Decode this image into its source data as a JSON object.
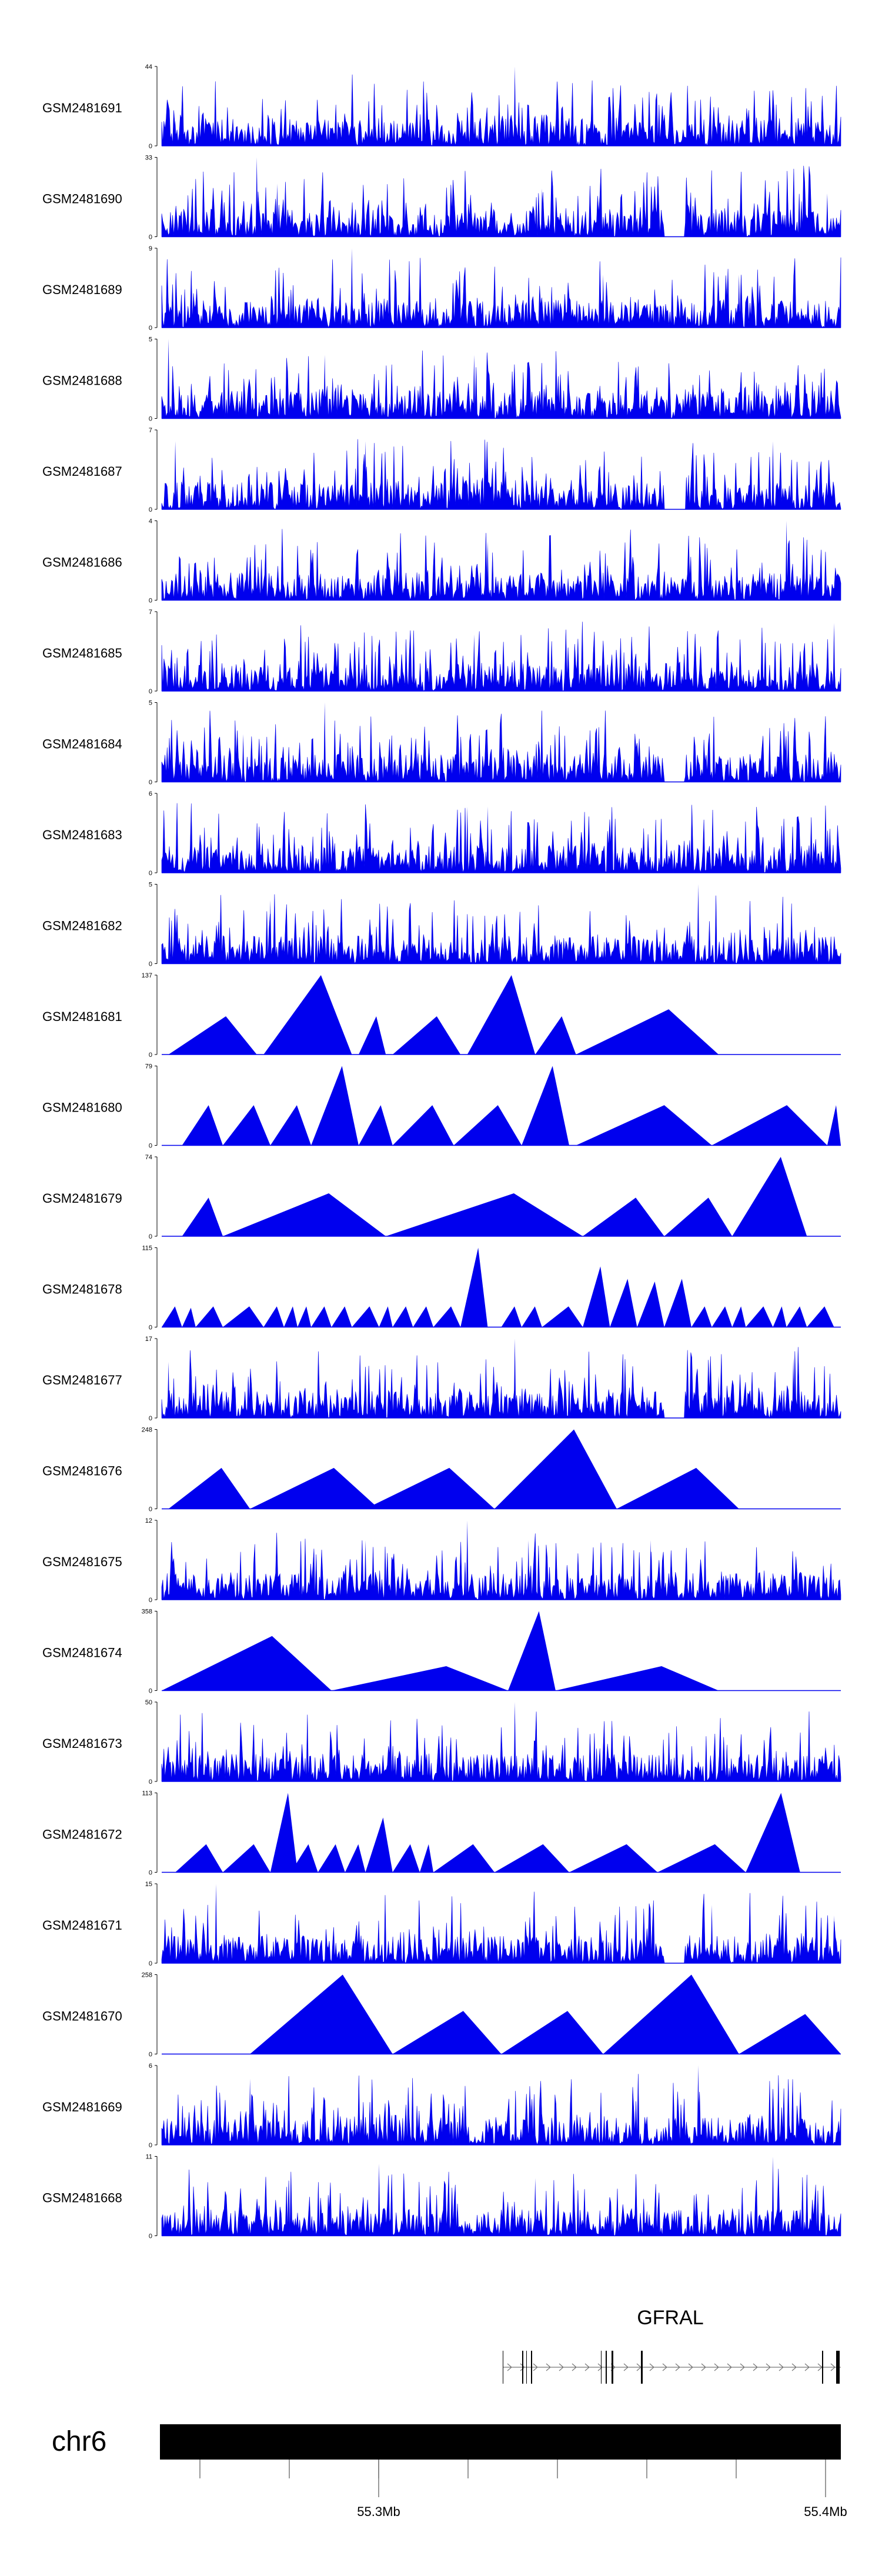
{
  "chart_data": {
    "type": "area",
    "title": "",
    "chromosome": "chr6",
    "x_axis": {
      "ticks": [
        {
          "label": "55.3Mb"
        },
        {
          "label": "55.4Mb"
        }
      ]
    },
    "colors": {
      "signal": "#0000ee",
      "axis": "#000000",
      "ideogram": "#000000"
    },
    "gene": {
      "name": "GFRAL",
      "strand": "+"
    },
    "tracks": [
      {
        "name": "GSM2481691",
        "ymax": "44",
        "ymin": "0",
        "style": "spiky",
        "seed": 11,
        "peaks": [
          [
            0.52,
            44
          ],
          [
            0.02,
            14
          ],
          [
            0.13,
            8
          ]
        ]
      },
      {
        "name": "GSM2481690",
        "ymax": "33",
        "ymin": "0",
        "style": "spiky",
        "seed": 12,
        "peaks": [
          [
            0.14,
            33
          ],
          [
            0.17,
            22
          ],
          [
            0.56,
            20
          ],
          [
            0.98,
            18
          ]
        ]
      },
      {
        "name": "GSM2481689",
        "ymax": "9",
        "ymin": "0",
        "style": "spiky",
        "seed": 13,
        "peaks": [
          [
            0.28,
            9
          ],
          [
            0.65,
            6
          ],
          [
            0.85,
            6
          ]
        ]
      },
      {
        "name": "GSM2481688",
        "ymax": "5",
        "ymin": "0",
        "style": "spiky",
        "seed": 14,
        "peaks": [
          [
            0.01,
            5
          ],
          [
            0.24,
            4
          ],
          [
            0.46,
            4
          ]
        ]
      },
      {
        "name": "GSM2481687",
        "ymax": "7",
        "ymin": "0",
        "style": "spiky",
        "seed": 15,
        "peaks": [
          [
            0.3,
            6
          ],
          [
            0.02,
            6
          ],
          [
            0.9,
            6
          ]
        ]
      },
      {
        "name": "GSM2481686",
        "ymax": "4",
        "ymin": "0",
        "style": "spiky",
        "seed": 16,
        "peaks": [
          [
            0.92,
            4
          ],
          [
            0.48,
            3
          ]
        ]
      },
      {
        "name": "GSM2481685",
        "ymax": "7",
        "ymin": "0",
        "style": "spiky",
        "seed": 17,
        "peaks": [
          [
            0.99,
            6
          ],
          [
            0.46,
            5
          ]
        ]
      },
      {
        "name": "GSM2481684",
        "ymax": "5",
        "ymin": "0",
        "style": "spiky",
        "seed": 18,
        "peaks": [
          [
            0.24,
            5
          ],
          [
            0.12,
            3
          ]
        ]
      },
      {
        "name": "GSM2481683",
        "ymax": "6",
        "ymin": "0",
        "style": "spiky",
        "seed": 19,
        "peaks": [
          [
            0.45,
            5
          ],
          [
            0.48,
            5
          ]
        ]
      },
      {
        "name": "GSM2481682",
        "ymax": "5",
        "ymin": "0",
        "style": "spiky",
        "seed": 20,
        "peaks": [
          [
            0.79,
            5
          ],
          [
            0.16,
            4
          ]
        ]
      },
      {
        "name": "GSM2481681",
        "ymax": "137",
        "ymin": "0",
        "style": "sparse",
        "segments": [
          [
            0.01,
            0.14,
            66
          ],
          [
            0.15,
            0.28,
            137
          ],
          [
            0.29,
            0.33,
            66
          ],
          [
            0.34,
            0.44,
            66
          ],
          [
            0.45,
            0.55,
            137
          ],
          [
            0.55,
            0.61,
            66
          ],
          [
            0.61,
            0.82,
            78
          ]
        ]
      },
      {
        "name": "GSM2481680",
        "ymax": "79",
        "ymin": "0",
        "style": "sparse",
        "segments": [
          [
            0.03,
            0.09,
            40
          ],
          [
            0.09,
            0.16,
            40
          ],
          [
            0.16,
            0.22,
            40
          ],
          [
            0.22,
            0.29,
            79
          ],
          [
            0.29,
            0.34,
            40
          ],
          [
            0.34,
            0.43,
            40
          ],
          [
            0.43,
            0.53,
            40
          ],
          [
            0.53,
            0.6,
            79
          ],
          [
            0.61,
            0.81,
            40
          ],
          [
            0.81,
            0.98,
            40
          ],
          [
            0.98,
            1.0,
            40
          ]
        ]
      },
      {
        "name": "GSM2481679",
        "ymax": "74",
        "ymin": "0",
        "style": "sparse",
        "segments": [
          [
            0.03,
            0.09,
            36
          ],
          [
            0.09,
            0.33,
            40
          ],
          [
            0.33,
            0.62,
            40
          ],
          [
            0.62,
            0.74,
            36
          ],
          [
            0.74,
            0.84,
            36
          ],
          [
            0.84,
            0.95,
            74
          ]
        ]
      },
      {
        "name": "GSM2481678",
        "ymax": "115",
        "ymin": "0",
        "style": "sparse",
        "segments": [
          [
            0.0,
            0.03,
            30
          ],
          [
            0.03,
            0.05,
            28
          ],
          [
            0.05,
            0.09,
            30
          ],
          [
            0.09,
            0.15,
            30
          ],
          [
            0.15,
            0.18,
            30
          ],
          [
            0.18,
            0.2,
            30
          ],
          [
            0.2,
            0.22,
            30
          ],
          [
            0.22,
            0.25,
            30
          ],
          [
            0.25,
            0.28,
            30
          ],
          [
            0.28,
            0.32,
            30
          ],
          [
            0.32,
            0.34,
            30
          ],
          [
            0.34,
            0.37,
            30
          ],
          [
            0.37,
            0.4,
            30
          ],
          [
            0.4,
            0.44,
            30
          ],
          [
            0.44,
            0.48,
            115
          ],
          [
            0.5,
            0.53,
            30
          ],
          [
            0.53,
            0.56,
            30
          ],
          [
            0.56,
            0.62,
            30
          ],
          [
            0.62,
            0.66,
            88
          ],
          [
            0.66,
            0.7,
            70
          ],
          [
            0.7,
            0.74,
            66
          ],
          [
            0.74,
            0.78,
            70
          ],
          [
            0.78,
            0.81,
            30
          ],
          [
            0.81,
            0.84,
            30
          ],
          [
            0.84,
            0.86,
            30
          ],
          [
            0.86,
            0.9,
            30
          ],
          [
            0.9,
            0.92,
            30
          ],
          [
            0.92,
            0.95,
            30
          ],
          [
            0.95,
            0.99,
            30
          ]
        ]
      },
      {
        "name": "GSM2481677",
        "ymax": "17",
        "ymin": "0",
        "style": "spiky",
        "seed": 21,
        "peaks": [
          [
            0.52,
            17
          ],
          [
            0.93,
            13
          ],
          [
            0.01,
            12
          ],
          [
            0.82,
            9
          ]
        ]
      },
      {
        "name": "GSM2481676",
        "ymax": "248",
        "ymin": "0",
        "style": "sparse",
        "segments": [
          [
            0.01,
            0.13,
            128
          ],
          [
            0.13,
            0.32,
            128
          ],
          [
            0.3,
            0.49,
            128
          ],
          [
            0.49,
            0.67,
            248
          ],
          [
            0.67,
            0.85,
            128
          ]
        ]
      },
      {
        "name": "GSM2481675",
        "ymax": "12",
        "ymin": "0",
        "style": "spiky",
        "seed": 22,
        "peaks": [
          [
            0.45,
            12
          ],
          [
            0.54,
            9
          ],
          [
            0.72,
            9
          ],
          [
            0.3,
            9
          ]
        ]
      },
      {
        "name": "GSM2481674",
        "ymax": "358",
        "ymin": "0",
        "style": "sparse",
        "segments": [
          [
            0.0,
            0.25,
            246
          ],
          [
            0.25,
            0.51,
            110
          ],
          [
            0.51,
            0.58,
            358
          ],
          [
            0.58,
            0.82,
            110
          ]
        ]
      },
      {
        "name": "GSM2481673",
        "ymax": "50",
        "ymin": "0",
        "style": "spiky",
        "seed": 23,
        "peaks": [
          [
            0.52,
            50
          ],
          [
            0.5,
            14
          ],
          [
            0.17,
            10
          ]
        ]
      },
      {
        "name": "GSM2481672",
        "ymax": "113",
        "ymin": "0",
        "style": "sparse",
        "segments": [
          [
            0.02,
            0.09,
            40
          ],
          [
            0.09,
            0.16,
            40
          ],
          [
            0.16,
            0.2,
            113
          ],
          [
            0.19,
            0.23,
            40
          ],
          [
            0.23,
            0.27,
            40
          ],
          [
            0.27,
            0.3,
            40
          ],
          [
            0.3,
            0.34,
            78
          ],
          [
            0.34,
            0.38,
            40
          ],
          [
            0.38,
            0.4,
            40
          ],
          [
            0.4,
            0.49,
            40
          ],
          [
            0.49,
            0.6,
            40
          ],
          [
            0.6,
            0.73,
            40
          ],
          [
            0.73,
            0.86,
            40
          ],
          [
            0.86,
            0.94,
            113
          ]
        ]
      },
      {
        "name": "GSM2481671",
        "ymax": "15",
        "ymin": "0",
        "style": "spiky",
        "seed": 24,
        "peaks": [
          [
            0.08,
            15
          ],
          [
            0.81,
            11
          ],
          [
            0.99,
            9
          ]
        ]
      },
      {
        "name": "GSM2481670",
        "ymax": "258",
        "ymin": "0",
        "style": "sparse",
        "segments": [
          [
            0.13,
            0.34,
            258
          ],
          [
            0.34,
            0.5,
            140
          ],
          [
            0.5,
            0.65,
            140
          ],
          [
            0.65,
            0.85,
            258
          ],
          [
            0.85,
            1.0,
            130
          ]
        ]
      },
      {
        "name": "GSM2481669",
        "ymax": "6",
        "ymin": "0",
        "style": "spiky",
        "seed": 25,
        "peaks": [
          [
            0.79,
            6
          ],
          [
            0.13,
            5
          ]
        ]
      },
      {
        "name": "GSM2481668",
        "ymax": "11",
        "ymin": "0",
        "style": "spiky",
        "seed": 26,
        "peaks": [
          [
            0.9,
            11
          ],
          [
            0.32,
            10
          ],
          [
            0.55,
            8
          ]
        ]
      }
    ]
  }
}
